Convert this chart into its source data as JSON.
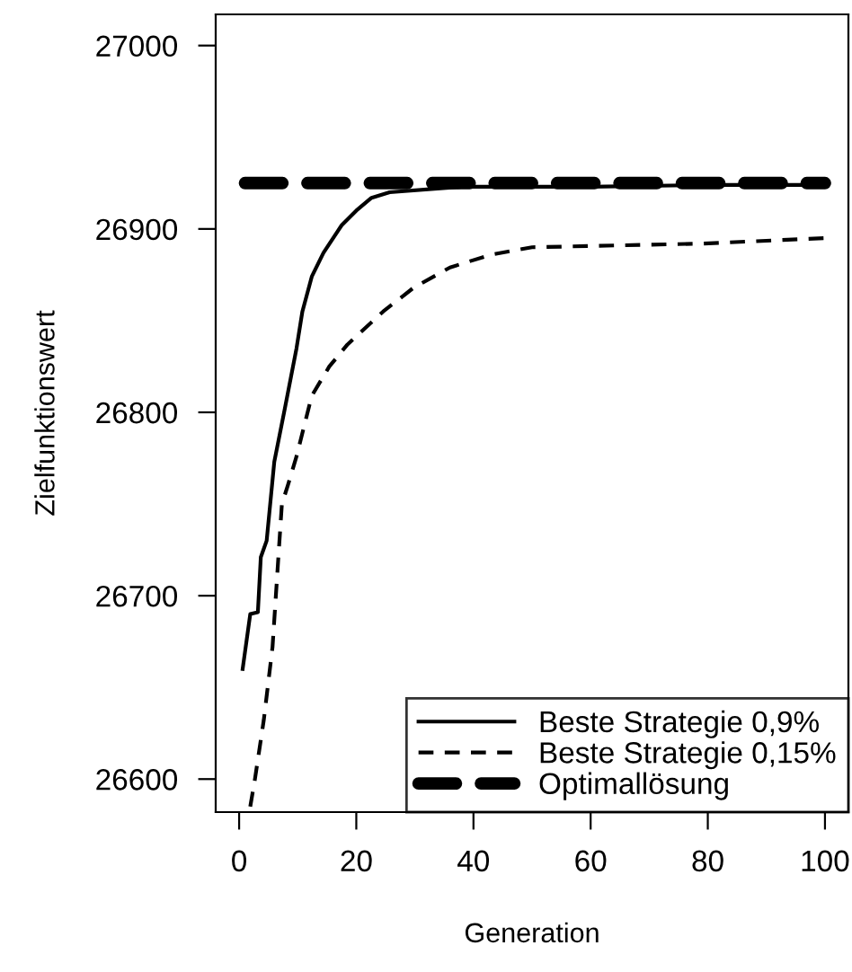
{
  "chart_data": {
    "type": "line",
    "xlabel": "Generation",
    "ylabel": "Zielfunktionswert",
    "xlim": [
      -4,
      104
    ],
    "ylim": [
      26582,
      27017
    ],
    "xticks": [
      0,
      20,
      40,
      60,
      80,
      100
    ],
    "yticks": [
      26600,
      26700,
      26800,
      26900,
      27000
    ],
    "grid": false,
    "legend": "bottom right",
    "marker": "none",
    "series": [
      {
        "name": "Beste Strategie 0,9%",
        "color": "#000000",
        "line_style": "solid",
        "x": [
          0.6,
          1.9,
          3.2,
          3.7,
          4.7,
          6.0,
          7.8,
          9.8,
          10.8,
          12.4,
          14.4,
          17.5,
          20,
          22.6,
          25.7,
          38,
          60,
          80,
          100
        ],
        "values": [
          26660,
          26690,
          26691,
          26721,
          26730,
          26773,
          26802,
          26835,
          26855,
          26874,
          26887,
          26902,
          26910,
          26917,
          26920,
          26923,
          26923,
          26924,
          26924
        ]
      },
      {
        "name": "Beste Strategie 0,15%",
        "color": "#000000",
        "line_style": "dashed",
        "x": [
          1.9,
          2.7,
          4.2,
          5.7,
          6.7,
          7.3,
          8.3,
          9.8,
          12.4,
          15.4,
          18.5,
          24.6,
          29.8,
          36,
          43,
          50,
          79,
          100
        ],
        "values": [
          26585,
          26600,
          26632,
          26672,
          26721,
          26750,
          26760,
          26776,
          26809,
          26825,
          26837,
          26855,
          26868,
          26879,
          26886,
          26890,
          26892,
          26895
        ]
      },
      {
        "name": "Optimallösung",
        "color": "#000000",
        "line_style": "dashed",
        "x": [
          1,
          100
        ],
        "values": [
          26925,
          26925
        ]
      }
    ]
  }
}
